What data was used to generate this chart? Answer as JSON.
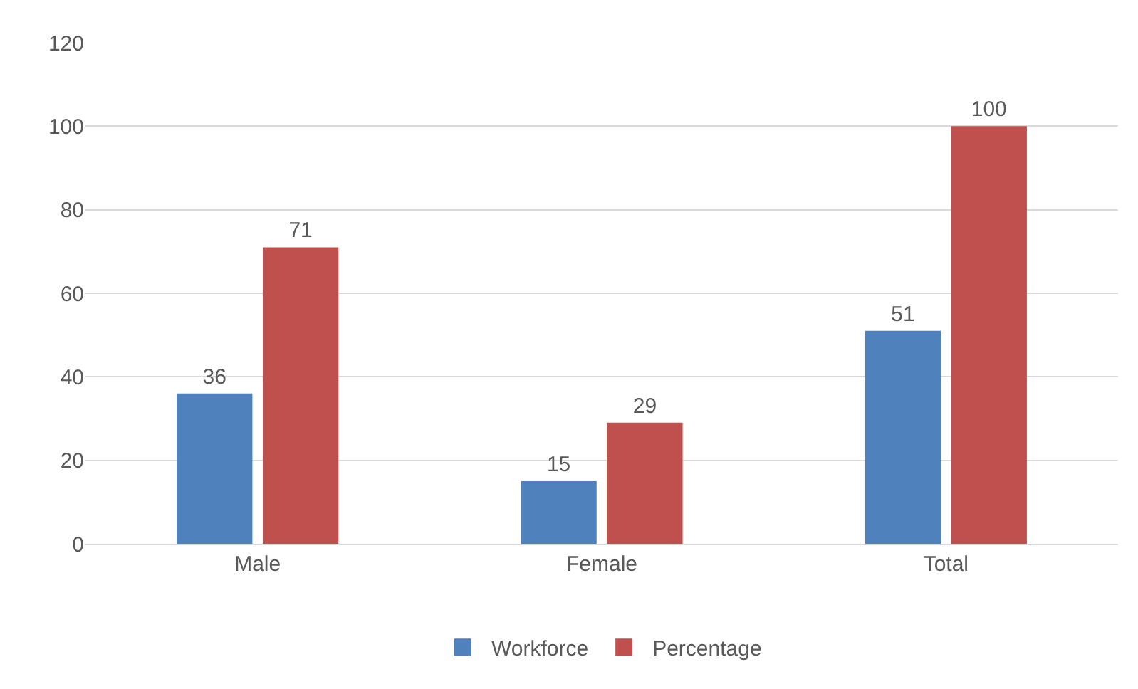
{
  "chart_data": {
    "type": "bar",
    "categories": [
      "Male",
      "Female",
      "Total"
    ],
    "series": [
      {
        "name": "Workforce",
        "color": "#4f81bd",
        "values": [
          36,
          15,
          51
        ]
      },
      {
        "name": "Percentage",
        "color": "#c0504d",
        "values": [
          71,
          29,
          100
        ]
      }
    ],
    "ylim": [
      0,
      120
    ],
    "yticks": [
      0,
      20,
      40,
      60,
      80,
      100,
      120
    ],
    "grid": "y",
    "legend": "bottom",
    "data_labels": true
  }
}
